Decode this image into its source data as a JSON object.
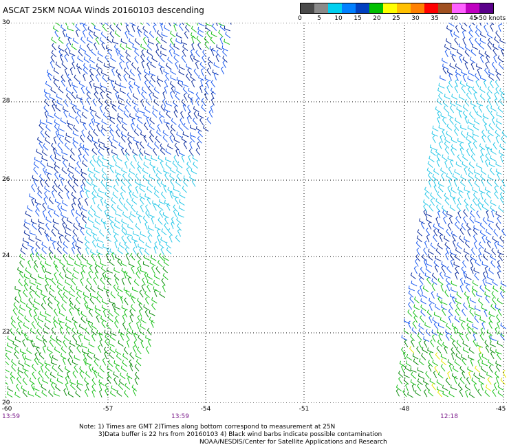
{
  "title": "ASCAT 25KM NOAA Winds 20160103 descending",
  "legend": {
    "colors": [
      "#4a4a4a",
      "#8a8a8a",
      "#00d0f0",
      "#0080ff",
      "#0040c0",
      "#00c000",
      "#ffff00",
      "#ffc000",
      "#ff8000",
      "#ff0000",
      "#a05020",
      "#ff60ff",
      "#c000c0",
      "#5a008a"
    ],
    "labels": [
      "0",
      "5",
      "10",
      "15",
      "20",
      "25",
      "30",
      "35",
      "40",
      "45",
      ">50 knots"
    ]
  },
  "lat_labels": [
    "30",
    "28",
    "26",
    "24",
    "22",
    "20"
  ],
  "lon_labels": [
    "-60",
    "-57",
    "-54",
    "-51",
    "-48",
    "-45"
  ],
  "time_labels": [
    "13:59",
    "13:59",
    "12:18"
  ],
  "notes": {
    "line1": "Note: 1) Times are GMT 2)Times along bottom correspond to measurement at 25N",
    "line2": "3)Data buffer is 22 hrs from 20160103 4) Black wind barbs indicate possible contamination",
    "line3": "NOAA/NESDIS/Center for Satellite Applications and Research"
  }
}
